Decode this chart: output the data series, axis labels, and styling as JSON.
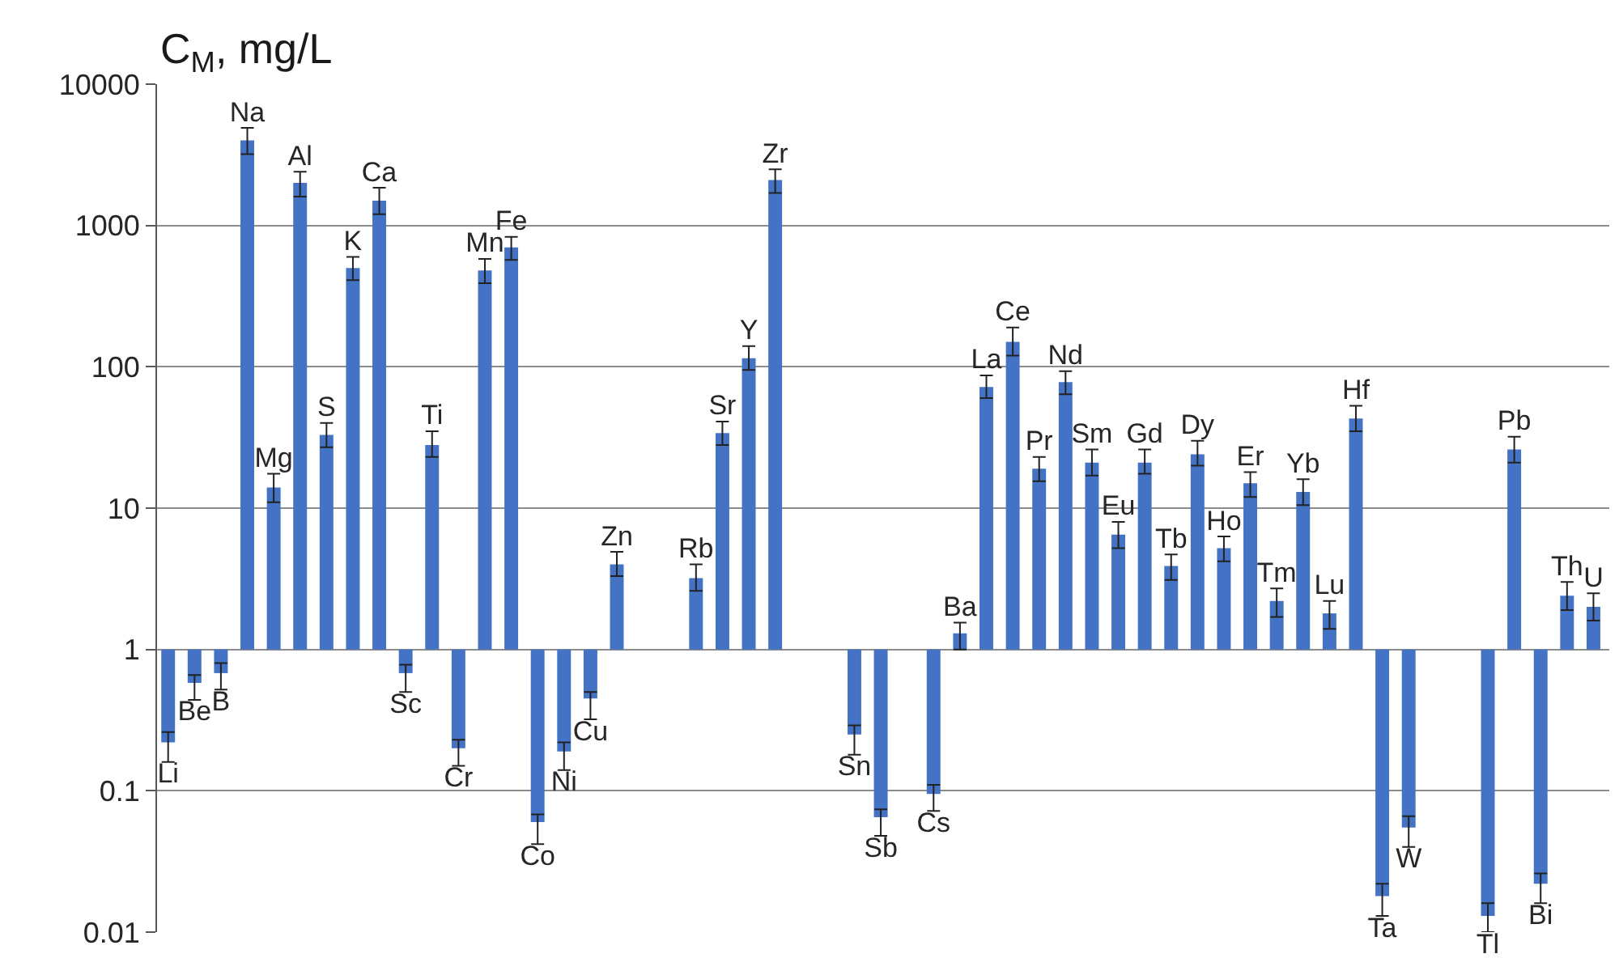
{
  "chart_data": {
    "type": "bar",
    "ylabel": "C$_{M}$, mg/L",
    "log": true,
    "grid": "y",
    "tick_labels": "y",
    "color": "#4472c4",
    "categories": [
      "Li",
      "Be",
      "B",
      "Na",
      "Mg",
      "Al",
      "S",
      "K",
      "Ca",
      "Sc",
      "Ti",
      "Cr",
      "Mn",
      "Fe",
      "Co",
      "Ni",
      "Cu",
      "Zn",
      null,
      null,
      "Rb",
      "Sr",
      "Y",
      "Zr",
      null,
      null,
      "Sn",
      "Sb",
      null,
      "Cs",
      "Ba",
      "La",
      "Ce",
      "Pr",
      "Nd",
      "Sm",
      "Eu",
      "Gd",
      "Tb",
      "Dy",
      "Ho",
      "Er",
      "Tm",
      "Yb",
      "Lu",
      "Hf",
      "Ta",
      "W",
      null,
      null,
      "Tl",
      "Pb",
      "Bi",
      "Th",
      "U"
    ],
    "base": [
      1,
      1,
      1,
      1,
      1,
      1,
      1,
      1,
      1,
      1,
      1,
      1,
      1,
      1,
      1,
      1,
      1,
      1,
      null,
      null,
      1,
      1,
      1,
      1,
      null,
      null,
      1,
      1,
      null,
      1,
      1,
      1,
      1,
      1,
      1,
      1,
      1,
      1,
      1,
      1,
      1,
      1,
      1,
      1,
      1,
      1,
      1,
      1,
      null,
      null,
      1,
      1,
      1,
      1,
      1
    ],
    "values": [
      -0.78,
      -0.42,
      -0.32,
      3999,
      13,
      1999,
      32,
      499,
      1499,
      -0.32,
      27,
      -0.8,
      479,
      699,
      -0.94,
      -0.81,
      -0.55,
      3.0,
      null,
      null,
      2.2,
      33,
      114,
      2099,
      null,
      null,
      -0.75,
      -0.935,
      null,
      -0.905,
      0.3,
      71,
      149,
      18,
      77,
      20,
      5.5,
      20,
      2.9,
      23,
      4.2,
      14,
      1.2,
      12,
      0.8,
      42,
      -0.982,
      -0.945,
      null,
      null,
      -0.987,
      25,
      -0.978,
      1.4,
      1.0
    ],
    "errors": [
      [
        0.16,
        0.26
      ],
      [
        0.44,
        0.66
      ],
      [
        0.52,
        0.8
      ],
      [
        3200,
        4900
      ],
      [
        11,
        17.5
      ],
      [
        1600,
        2400
      ],
      [
        27,
        40
      ],
      [
        410,
        600
      ],
      [
        1200,
        1850
      ],
      [
        0.5,
        0.78
      ],
      [
        23,
        35
      ],
      [
        0.15,
        0.23
      ],
      [
        390,
        580
      ],
      [
        570,
        830
      ],
      [
        0.042,
        0.068
      ],
      [
        0.14,
        0.22
      ],
      [
        0.32,
        0.5
      ],
      [
        3.3,
        4.9
      ],
      null,
      null,
      [
        2.6,
        4.0
      ],
      [
        28,
        41
      ],
      [
        95,
        140
      ],
      [
        1700,
        2500
      ],
      null,
      null,
      [
        0.18,
        0.29
      ],
      [
        0.048,
        0.074
      ],
      null,
      [
        0.072,
        0.11
      ],
      [
        1.0,
        1.55
      ],
      [
        60,
        87
      ],
      [
        120,
        190
      ],
      [
        15.5,
        23
      ],
      [
        64,
        93
      ],
      [
        17,
        26
      ],
      [
        5.2,
        8.0
      ],
      [
        17.5,
        26
      ],
      [
        3.1,
        4.7
      ],
      [
        20,
        30
      ],
      [
        4.2,
        6.3
      ],
      [
        12,
        18
      ],
      [
        1.7,
        2.7
      ],
      [
        10.5,
        16
      ],
      [
        1.4,
        2.2
      ],
      [
        35,
        53
      ],
      [
        0.013,
        0.022
      ],
      [
        0.04,
        0.066
      ],
      null,
      null,
      [
        0.01,
        0.016
      ],
      [
        21,
        32
      ],
      [
        0.016,
        0.026
      ],
      [
        1.9,
        3.0
      ],
      [
        1.6,
        2.5
      ]
    ],
    "ylim": [
      0.01,
      10000
    ],
    "yticks": [
      0.01,
      0.1,
      1,
      10,
      100,
      1000,
      10000
    ]
  }
}
